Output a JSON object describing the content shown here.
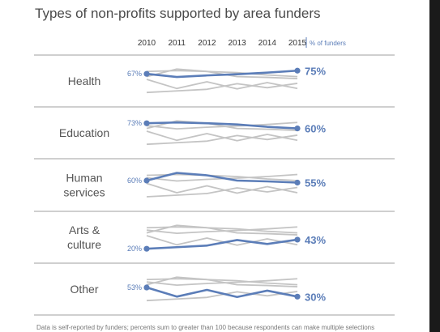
{
  "title": "Types of non-profits supported by area funders",
  "footnote": "Data is self-reported by funders; percents sum to greater than 100 because respondents can make multiple selections",
  "colors": {
    "highlight": "#5b7db8",
    "context": "#c4c4c4",
    "divider": "#cfcfcf",
    "label": "#555555"
  },
  "chart_data": {
    "type": "line",
    "title": "Types of non-profits supported by area funders",
    "years": [
      "2010",
      "2011",
      "2012",
      "2013",
      "2014",
      "2015"
    ],
    "unit_label": "% of funders",
    "ylim": [
      0,
      100
    ],
    "grid": false,
    "panels": [
      {
        "label_lines": [
          "Health"
        ],
        "values": [
          67,
          59,
          63,
          66,
          70,
          75
        ],
        "start_label": "67%",
        "end_label": "75%"
      },
      {
        "label_lines": [
          "Education"
        ],
        "values": [
          73,
          75,
          73,
          70,
          64,
          60
        ],
        "start_label": "73%",
        "end_label": "60%"
      },
      {
        "label_lines": [
          "Human",
          "services"
        ],
        "values": [
          60,
          79,
          73,
          60,
          58,
          55
        ],
        "start_label": "60%",
        "end_label": "55%"
      },
      {
        "label_lines": [
          "Arts &",
          "culture"
        ],
        "values": [
          20,
          24,
          28,
          42,
          32,
          43
        ],
        "start_label": "20%",
        "end_label": "43%"
      },
      {
        "label_lines": [
          "Other"
        ],
        "values": [
          53,
          30,
          47,
          29,
          45,
          30
        ],
        "start_label": "53%",
        "end_label": "30%"
      }
    ]
  }
}
